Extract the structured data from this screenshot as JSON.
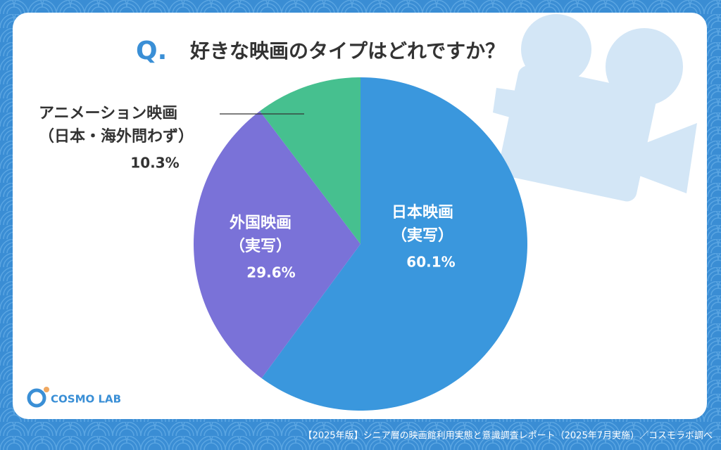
{
  "title_prefix": "Q.",
  "chart_data": {
    "type": "pie",
    "title": "好きな映画のタイプはどれですか？",
    "categories": [
      [
        "日本映画",
        "（実写）"
      ],
      [
        "外国映画",
        "（実写）"
      ],
      [
        "アニメーション映画",
        "（日本・海外問わず）"
      ]
    ],
    "values": [
      60.1,
      29.6,
      10.3
    ],
    "value_labels": [
      "60.1%",
      "29.6%",
      "10.3%"
    ],
    "colors": [
      "#3a97dd",
      "#7a72d8",
      "#46c08f"
    ]
  },
  "brand": "COSMO LAB",
  "footer": "【2025年版】シニア層の映画館利用実態と意識調査レポート（2025年7月実施）／コスモラボ調べ"
}
